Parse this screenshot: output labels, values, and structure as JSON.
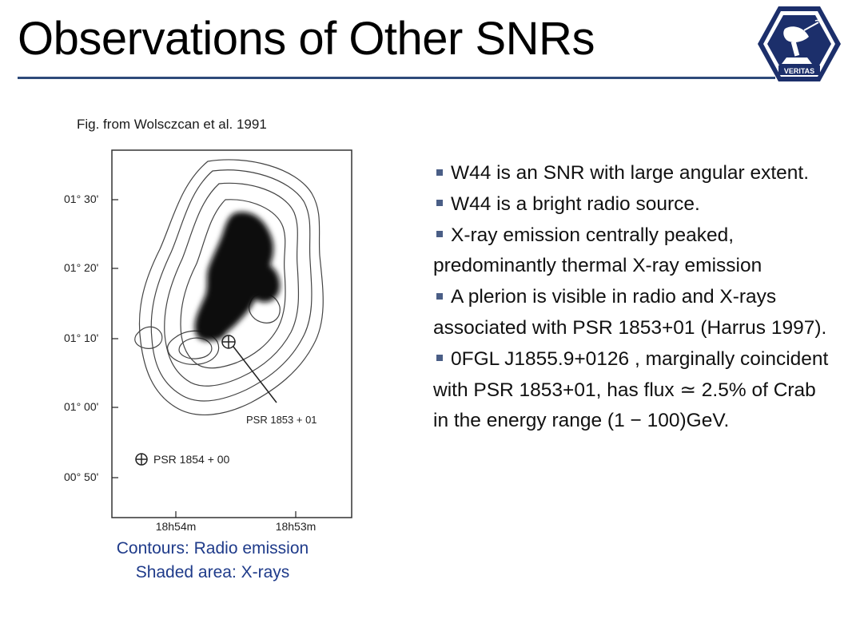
{
  "slide": {
    "title": "Observations of Other SNRs"
  },
  "logo": {
    "label": "VERITAS",
    "icon": "veritas-telescope-hexagon-logo",
    "colors": {
      "outer": "#1c2f6b",
      "inner": "#ffffff"
    }
  },
  "figure": {
    "source_caption": "Fig. from Wolsczcan et al. 1991",
    "axis": {
      "dec_ticks": [
        "01° 30'",
        "01° 20'",
        "01° 10'",
        "01° 00'",
        "00° 50'"
      ],
      "ra_ticks": [
        "18h54m",
        "18h53m"
      ]
    },
    "labels": {
      "psr_1853": "PSR 1853 + 01",
      "psr_1854": "PSR 1854 + 00"
    },
    "caption_lines": [
      "Contours: Radio emission",
      "Shaded area: X-rays"
    ]
  },
  "bullets": [
    "W44 is an SNR with large angular extent.",
    "W44 is a bright radio source.",
    "X-ray emission centrally peaked, predominantly thermal X-ray emission",
    "A plerion is visible in radio and X-rays associated with PSR 1853+01 (Harrus 1997).",
    "0FGL J1855.9+0126 , marginally coincident with PSR 1853+01, has flux ≃ 2.5% of Crab in the energy range (1 − 100)GeV."
  ],
  "colors": {
    "title_rule": "#2e4a7a",
    "caption": "#1f3b8a",
    "bullet_marker": "#4a5e86"
  }
}
